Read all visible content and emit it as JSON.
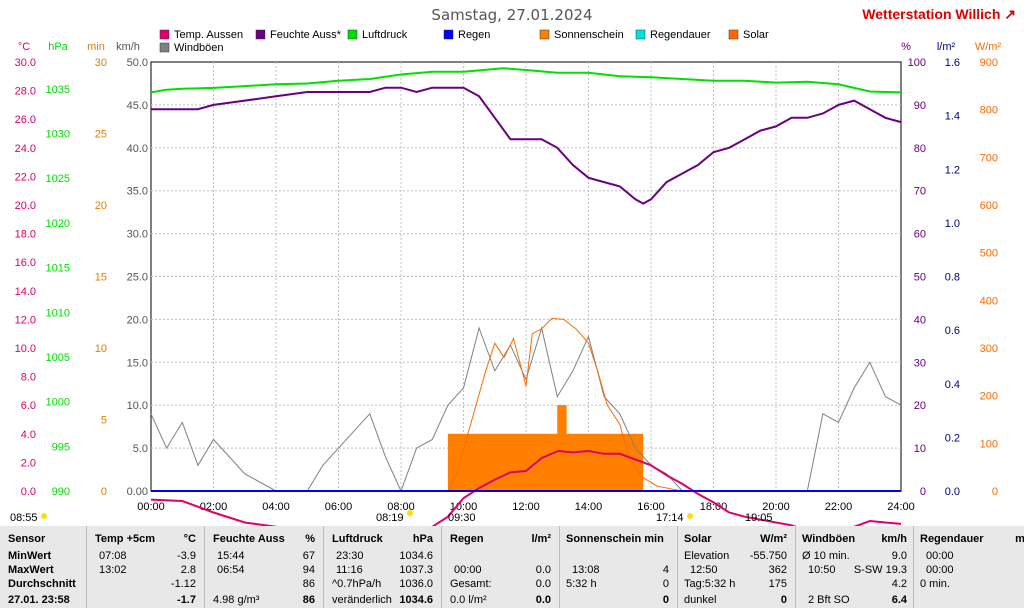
{
  "title": "Samstag, 27.01.2024",
  "station": "Wetterstation Willich",
  "station_suffix": "↗",
  "colors": {
    "temp": "#e0006c",
    "humid": "#6a0080",
    "pressure": "#00e000",
    "rain": "#0000ff",
    "sunshine": "#ff8000",
    "raindur": "#00e0e0",
    "solar": "#ff6a00",
    "gust": "#808080",
    "min_axis": "#e08000",
    "kmh_axis": "#555555",
    "pct_axis": "#6a0080",
    "lm2_axis": "#000080",
    "wm2_axis": "#ff6a00",
    "grid": "#c0c0c0"
  },
  "legend": [
    {
      "label": "Temp. Aussen",
      "color": "#e0006c"
    },
    {
      "label": "Feuchte Auss*",
      "color": "#6a0080"
    },
    {
      "label": "Luftdruck",
      "color": "#00e000"
    },
    {
      "label": "Regen",
      "color": "#0000ff"
    },
    {
      "label": "Sonnenschein",
      "color": "#ff8000"
    },
    {
      "label": "Regendauer",
      "color": "#00e0e0"
    },
    {
      "label": "Solar",
      "color": "#ff6a00"
    },
    {
      "label": "Windböen",
      "color": "#808080"
    }
  ],
  "axis_units": {
    "degc": "°C",
    "hpa": "hPa",
    "min": "min",
    "kmh": "km/h",
    "pct": "%",
    "lm2": "l/m²",
    "wm2": "W/m²"
  },
  "chart_data": {
    "type": "line",
    "x_range_hours": [
      0,
      24
    ],
    "x_ticks": [
      "00:00",
      "02:00",
      "04:00",
      "06:00",
      "08:00",
      "10:00",
      "12:00",
      "14:00",
      "16:00",
      "18:00",
      "20:00",
      "22:00",
      "24:00"
    ],
    "axes": {
      "degc": {
        "range": [
          0,
          30
        ],
        "ticks": [
          "0.0",
          "2.0",
          "4.0",
          "6.0",
          "8.0",
          "10.0",
          "12.0",
          "14.0",
          "16.0",
          "18.0",
          "20.0",
          "22.0",
          "24.0",
          "26.0",
          "28.0",
          "30.0"
        ]
      },
      "hpa": {
        "range": [
          990,
          1038
        ],
        "ticks": [
          "990",
          "995",
          "1000",
          "1005",
          "1010",
          "1015",
          "1020",
          "1025",
          "1030",
          "1035"
        ]
      },
      "min": {
        "range": [
          0,
          30
        ],
        "ticks": [
          "0",
          "5",
          "10",
          "15",
          "20",
          "25",
          "30"
        ]
      },
      "kmh": {
        "range": [
          0,
          50
        ],
        "ticks": [
          "0.00",
          "5.0",
          "10.0",
          "15.0",
          "20.0",
          "25.0",
          "30.0",
          "35.0",
          "40.0",
          "45.0",
          "50.0"
        ]
      },
      "pct": {
        "range": [
          0,
          100
        ],
        "ticks": [
          "0",
          "10",
          "20",
          "30",
          "40",
          "50",
          "60",
          "70",
          "80",
          "90",
          "100"
        ]
      },
      "lm2": {
        "range": [
          0,
          1.6
        ],
        "ticks": [
          "0.0",
          "0.2",
          "0.4",
          "0.6",
          "0.8",
          "1.0",
          "1.2",
          "1.4",
          "1.6"
        ]
      },
      "wm2": {
        "range": [
          0,
          900
        ],
        "ticks": [
          "0",
          "100",
          "200",
          "300",
          "400",
          "500",
          "600",
          "700",
          "800",
          "900"
        ]
      }
    },
    "series": [
      {
        "name": "Temp. Aussen",
        "axis": "degc",
        "color": "#e0006c",
        "points": [
          [
            0,
            -0.6
          ],
          [
            1,
            -0.7
          ],
          [
            2,
            -1.5
          ],
          [
            3,
            -2.2
          ],
          [
            4,
            -2.5
          ],
          [
            5,
            -2.8
          ],
          [
            6,
            -3.4
          ],
          [
            7,
            -3.8
          ],
          [
            7.13,
            -3.9
          ],
          [
            8,
            -3.7
          ],
          [
            8.5,
            -3.4
          ],
          [
            9,
            -2.5
          ],
          [
            9.5,
            -1.8
          ],
          [
            10,
            -0.5
          ],
          [
            10.5,
            0.2
          ],
          [
            11,
            0.8
          ],
          [
            11.5,
            1.3
          ],
          [
            12,
            1.4
          ],
          [
            12.5,
            2.3
          ],
          [
            13.03,
            2.8
          ],
          [
            13.5,
            2.7
          ],
          [
            14,
            2.8
          ],
          [
            14.5,
            2.6
          ],
          [
            15,
            2.6
          ],
          [
            15.5,
            2.2
          ],
          [
            16,
            1.8
          ],
          [
            16.5,
            1.1
          ],
          [
            17,
            0.5
          ],
          [
            17.5,
            -0.2
          ],
          [
            18,
            -0.8
          ],
          [
            18.5,
            -1.5
          ],
          [
            19,
            -1.8
          ],
          [
            19.5,
            -2.0
          ],
          [
            20,
            -2.2
          ],
          [
            20.5,
            -2.4
          ],
          [
            21,
            -2.8
          ],
          [
            21.5,
            -3.2
          ],
          [
            22,
            -3.1
          ],
          [
            22.5,
            -2.5
          ],
          [
            23,
            -2.1
          ],
          [
            23.5,
            -2.2
          ],
          [
            24,
            -2.3
          ]
        ]
      },
      {
        "name": "Feuchte Auss*",
        "axis": "pct",
        "color": "#6a0080",
        "points": [
          [
            0,
            89
          ],
          [
            1,
            89
          ],
          [
            1.5,
            89
          ],
          [
            2,
            90
          ],
          [
            3,
            91
          ],
          [
            4,
            92
          ],
          [
            5,
            93
          ],
          [
            6,
            93
          ],
          [
            7,
            93
          ],
          [
            7.5,
            94
          ],
          [
            8,
            94
          ],
          [
            8.5,
            93
          ],
          [
            9,
            94
          ],
          [
            10,
            94
          ],
          [
            10.5,
            92
          ],
          [
            11,
            87
          ],
          [
            11.5,
            82
          ],
          [
            12,
            82
          ],
          [
            12.5,
            82
          ],
          [
            13,
            80
          ],
          [
            13.5,
            76
          ],
          [
            14,
            73
          ],
          [
            14.5,
            72
          ],
          [
            15,
            71
          ],
          [
            15.5,
            68
          ],
          [
            15.75,
            67
          ],
          [
            16,
            68
          ],
          [
            16.5,
            72
          ],
          [
            17,
            74
          ],
          [
            17.5,
            76
          ],
          [
            18,
            79
          ],
          [
            18.5,
            80
          ],
          [
            19,
            82
          ],
          [
            19.5,
            84
          ],
          [
            20,
            85
          ],
          [
            20.5,
            87
          ],
          [
            21,
            87
          ],
          [
            21.5,
            88
          ],
          [
            22,
            90
          ],
          [
            22.5,
            91
          ],
          [
            23,
            89
          ],
          [
            23.5,
            87
          ],
          [
            24,
            86
          ]
        ]
      },
      {
        "name": "Luftdruck",
        "axis": "hpa",
        "color": "#00e000",
        "points": [
          [
            0,
            1034.6
          ],
          [
            0.5,
            1034.9
          ],
          [
            1,
            1035.0
          ],
          [
            2,
            1035.1
          ],
          [
            3,
            1035.3
          ],
          [
            4,
            1035.5
          ],
          [
            5,
            1035.6
          ],
          [
            6,
            1035.9
          ],
          [
            7,
            1036.1
          ],
          [
            8,
            1036.6
          ],
          [
            9,
            1036.9
          ],
          [
            10,
            1036.9
          ],
          [
            11.27,
            1037.3
          ],
          [
            12,
            1037.1
          ],
          [
            13,
            1036.8
          ],
          [
            14,
            1036.8
          ],
          [
            15,
            1036.4
          ],
          [
            16,
            1036.3
          ],
          [
            17,
            1036.1
          ],
          [
            18,
            1035.9
          ],
          [
            19,
            1035.9
          ],
          [
            20,
            1035.7
          ],
          [
            21,
            1035.8
          ],
          [
            22,
            1035.5
          ],
          [
            22.5,
            1035.1
          ],
          [
            23,
            1034.7
          ],
          [
            24,
            1034.6
          ]
        ]
      },
      {
        "name": "Regen",
        "axis": "lm2",
        "color": "#0000ff",
        "points": [
          [
            0,
            0.0
          ],
          [
            24,
            0.0
          ]
        ]
      },
      {
        "name": "Solar",
        "axis": "wm2",
        "color": "#ff6a00",
        "points": [
          [
            9.5,
            0
          ],
          [
            9.8,
            40
          ],
          [
            10.1,
            110
          ],
          [
            10.4,
            180
          ],
          [
            10.7,
            250
          ],
          [
            11,
            310
          ],
          [
            11.3,
            280
          ],
          [
            11.6,
            320
          ],
          [
            12,
            220
          ],
          [
            12.2,
            330
          ],
          [
            12.5,
            340
          ],
          [
            12.83,
            362
          ],
          [
            13.2,
            360
          ],
          [
            13.6,
            340
          ],
          [
            14,
            310
          ],
          [
            14.3,
            250
          ],
          [
            14.6,
            180
          ],
          [
            15,
            140
          ],
          [
            15.3,
            70
          ],
          [
            15.7,
            30
          ],
          [
            16.2,
            10
          ],
          [
            17,
            0
          ]
        ]
      },
      {
        "name": "Windböen",
        "axis": "kmh",
        "color": "#808080",
        "points": [
          [
            0,
            9
          ],
          [
            0.5,
            5
          ],
          [
            1,
            8
          ],
          [
            1.5,
            3
          ],
          [
            2,
            6
          ],
          [
            3,
            2
          ],
          [
            4,
            0
          ],
          [
            5,
            0
          ],
          [
            5.5,
            3
          ],
          [
            6,
            5
          ],
          [
            6.5,
            7
          ],
          [
            7,
            9
          ],
          [
            7.5,
            4
          ],
          [
            8,
            0
          ],
          [
            8.5,
            5
          ],
          [
            9,
            6
          ],
          [
            9.5,
            10
          ],
          [
            10,
            12
          ],
          [
            10.5,
            19
          ],
          [
            11,
            14
          ],
          [
            11.5,
            17
          ],
          [
            12,
            13
          ],
          [
            12.5,
            19
          ],
          [
            13,
            11
          ],
          [
            13.5,
            14
          ],
          [
            14,
            18
          ],
          [
            14.5,
            11
          ],
          [
            15,
            9
          ],
          [
            15.5,
            5
          ],
          [
            16,
            3
          ],
          [
            16.5,
            2
          ],
          [
            17,
            0
          ],
          [
            18,
            0
          ],
          [
            20,
            0
          ],
          [
            21,
            0
          ],
          [
            21.5,
            9
          ],
          [
            22,
            8
          ],
          [
            22.5,
            12
          ],
          [
            23,
            15
          ],
          [
            23.5,
            11
          ],
          [
            24,
            10
          ]
        ]
      }
    ],
    "sunshine_bars": {
      "axis": "min",
      "color": "#ff8000",
      "bars": [
        [
          9.5,
          12.0,
          4
        ],
        [
          12.0,
          15.75,
          4
        ],
        [
          13.0,
          13.3,
          6
        ]
      ]
    },
    "markers": {
      "sunrise": "08:19",
      "sunset": "17:14",
      "min_time": "08:55",
      "rain_start": "09:30",
      "rain_end": "19:05"
    }
  },
  "table": {
    "sensor": {
      "h": "Sensor",
      "rows": [
        "MinWert",
        "MaxWert",
        "Durchschnitt",
        "27.01. 23:58"
      ]
    },
    "temp": {
      "h": "Temp +5cm",
      "u": "°C",
      "min_t": "07:08",
      "min_v": "-3.9",
      "max_t": "13:02",
      "max_v": "2.8",
      "avg": "-1.12",
      "cur": "-1.7"
    },
    "feuchte": {
      "h": "Feuchte Auss",
      "u": "%",
      "min_t": "15:44",
      "min_v": "67",
      "max_t": "06:54",
      "max_v": "94",
      "avg": "86",
      "cur_label": "4.98 g/m³",
      "cur": "86"
    },
    "druck": {
      "h": "Luftdruck",
      "u": "hPa",
      "min_t": "23:30",
      "min_v": "1034.6",
      "max_t": "11:16",
      "max_v": "1037.3",
      "trend": "^0.7hPa/h",
      "trend_v": "1036.0",
      "cur_label": "veränderlich",
      "cur": "1034.6"
    },
    "regen": {
      "h": "Regen",
      "u": "l/m²",
      "r2_t": "00:00",
      "r2_v": "0.0",
      "r3_t": "Gesamt:",
      "r3_v": "0.0",
      "cur_label": "0.0 l/m²",
      "cur": "0.0"
    },
    "sonne": {
      "h": "Sonnenschein min",
      "r2_t": "13:08",
      "r2_v": "4",
      "r3_t": "5:32 h",
      "r3_v": "0",
      "cur": "0"
    },
    "solar": {
      "h": "Solar",
      "u": "W/m²",
      "r1_t": "Elevation",
      "r1_v": "-55.750",
      "r2_t": "12:50",
      "r2_v": "362",
      "r3_t": "Tag:5:32 h",
      "r3_v": "175",
      "cur_label": "dunkel",
      "cur": "0"
    },
    "wind": {
      "h": "Windböen",
      "u": "km/h",
      "r1_t": "Ø 10 min.",
      "r1_v": "9.0",
      "r2_t": "10:50",
      "r2_m": "S-SW 19.3",
      "r3_v": "4.2",
      "cur_label": "2 Bft SO",
      "cur": "6.4"
    },
    "regendauer": {
      "h": "Regendauer",
      "u": "mi",
      "r1_t": "00:00",
      "r2_t": "00:00",
      "r3_t": "0 min."
    }
  }
}
